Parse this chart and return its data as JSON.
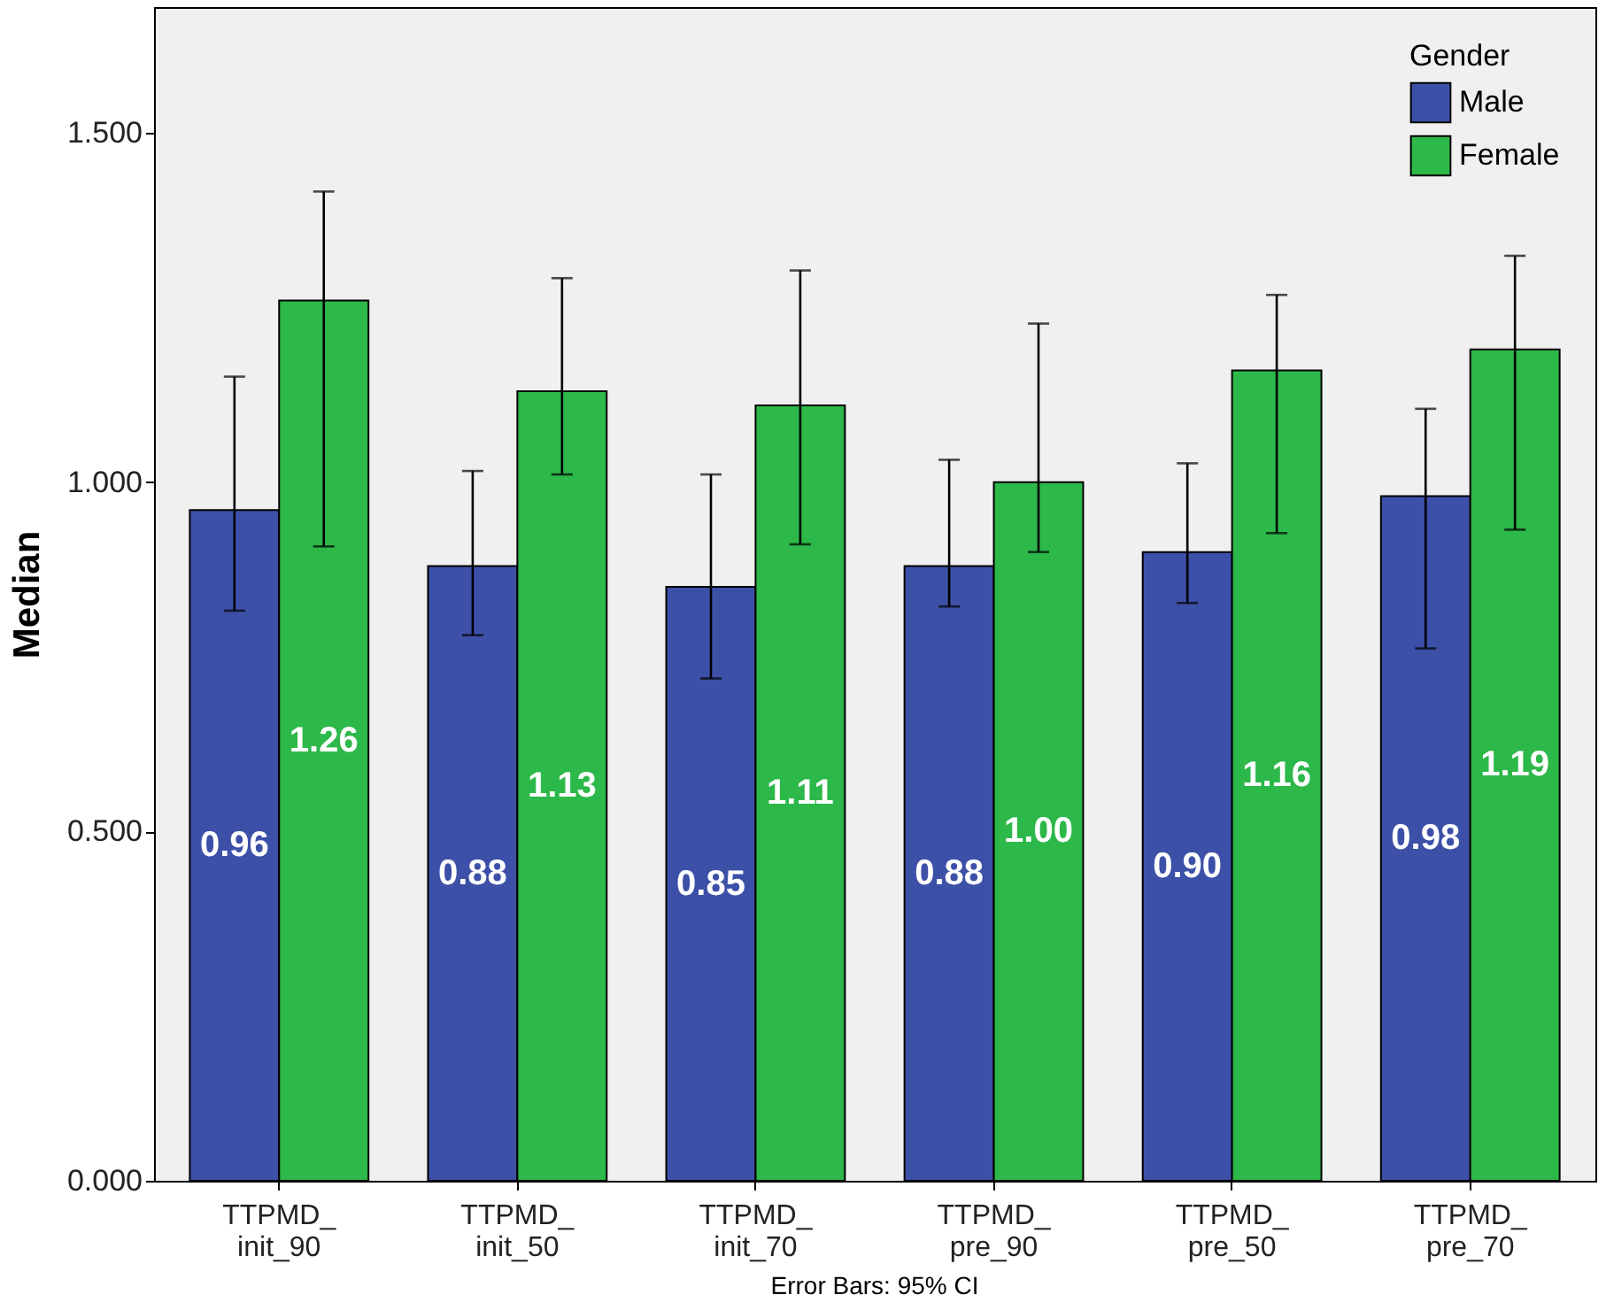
{
  "chart_data": {
    "type": "bar",
    "ylabel": "Median",
    "legend_title": "Gender",
    "legend": "top right",
    "grid": false,
    "categories": [
      "TTPMD_\ninit_90",
      "TTPMD_\ninit_50",
      "TTPMD_\ninit_70",
      "TTPMD_\npre_90",
      "TTPMD_\npre_50",
      "TTPMD_\npre_70"
    ],
    "series": [
      {
        "name": "Male",
        "color": "#3d50a8",
        "values": [
          0.96,
          0.88,
          0.85,
          0.88,
          0.9,
          0.98
        ],
        "value_labels": [
          "0.96",
          "0.88",
          "0.85",
          "0.88",
          "0.90",
          "0.98"
        ],
        "errors": [
          [
            0.816,
            1.151
          ],
          [
            0.781,
            1.016
          ],
          [
            0.719,
            1.011
          ],
          [
            0.822,
            1.032
          ],
          [
            0.827,
            1.027
          ],
          [
            0.762,
            1.105
          ]
        ]
      },
      {
        "name": "Female",
        "color": "#2db84a",
        "values": [
          1.26,
          1.13,
          1.11,
          1.0,
          1.16,
          1.19
        ],
        "value_labels": [
          "1.26",
          "1.13",
          "1.11",
          "1.00",
          "1.16",
          "1.19"
        ],
        "errors": [
          [
            0.908,
            1.416
          ],
          [
            1.011,
            1.292
          ],
          [
            0.911,
            1.303
          ],
          [
            0.9,
            1.227
          ],
          [
            0.927,
            1.268
          ],
          [
            0.932,
            1.324
          ]
        ]
      }
    ],
    "ylim": [
      0,
      1.68
    ],
    "yticks": [
      {
        "value": 0,
        "label": "0.000"
      },
      {
        "value": 0.5,
        "label": "0.500"
      },
      {
        "value": 1,
        "label": "1.000"
      },
      {
        "value": 1.5,
        "label": "1.500"
      }
    ],
    "annotations": [
      "Error Bars: 95% CI"
    ]
  }
}
